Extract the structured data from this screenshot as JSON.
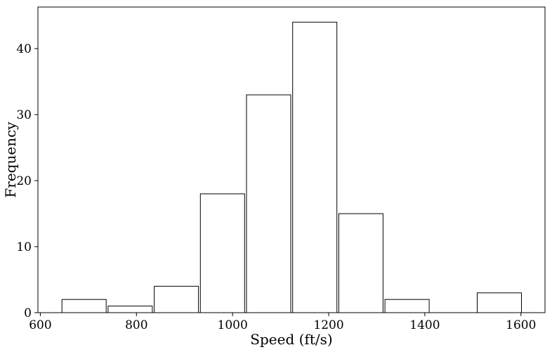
{
  "chart_data": {
    "type": "bar",
    "title": "",
    "xlabel": "Speed (ft/s)",
    "ylabel": "Frequency",
    "xlim": [
      595,
      1650
    ],
    "ylim": [
      0,
      46.3
    ],
    "xticks": [
      600,
      800,
      1000,
      1200,
      1400,
      1600
    ],
    "yticks": [
      0,
      10,
      20,
      30,
      40
    ],
    "grid": false,
    "legend": "none",
    "bins": [
      {
        "x0": 645,
        "x1": 737,
        "count": 2
      },
      {
        "x0": 741,
        "x1": 833,
        "count": 1
      },
      {
        "x0": 837,
        "x1": 929,
        "count": 4
      },
      {
        "x0": 933,
        "x1": 1025,
        "count": 18
      },
      {
        "x0": 1029,
        "x1": 1121,
        "count": 33
      },
      {
        "x0": 1125,
        "x1": 1217,
        "count": 44
      },
      {
        "x0": 1221,
        "x1": 1313,
        "count": 15
      },
      {
        "x0": 1317,
        "x1": 1409,
        "count": 2
      },
      {
        "x0": 1413,
        "x1": 1505,
        "count": 0
      },
      {
        "x0": 1509,
        "x1": 1601,
        "count": 3
      }
    ],
    "colors": {
      "bar_fill": "#ffffff",
      "bar_edge": "#000000"
    }
  }
}
